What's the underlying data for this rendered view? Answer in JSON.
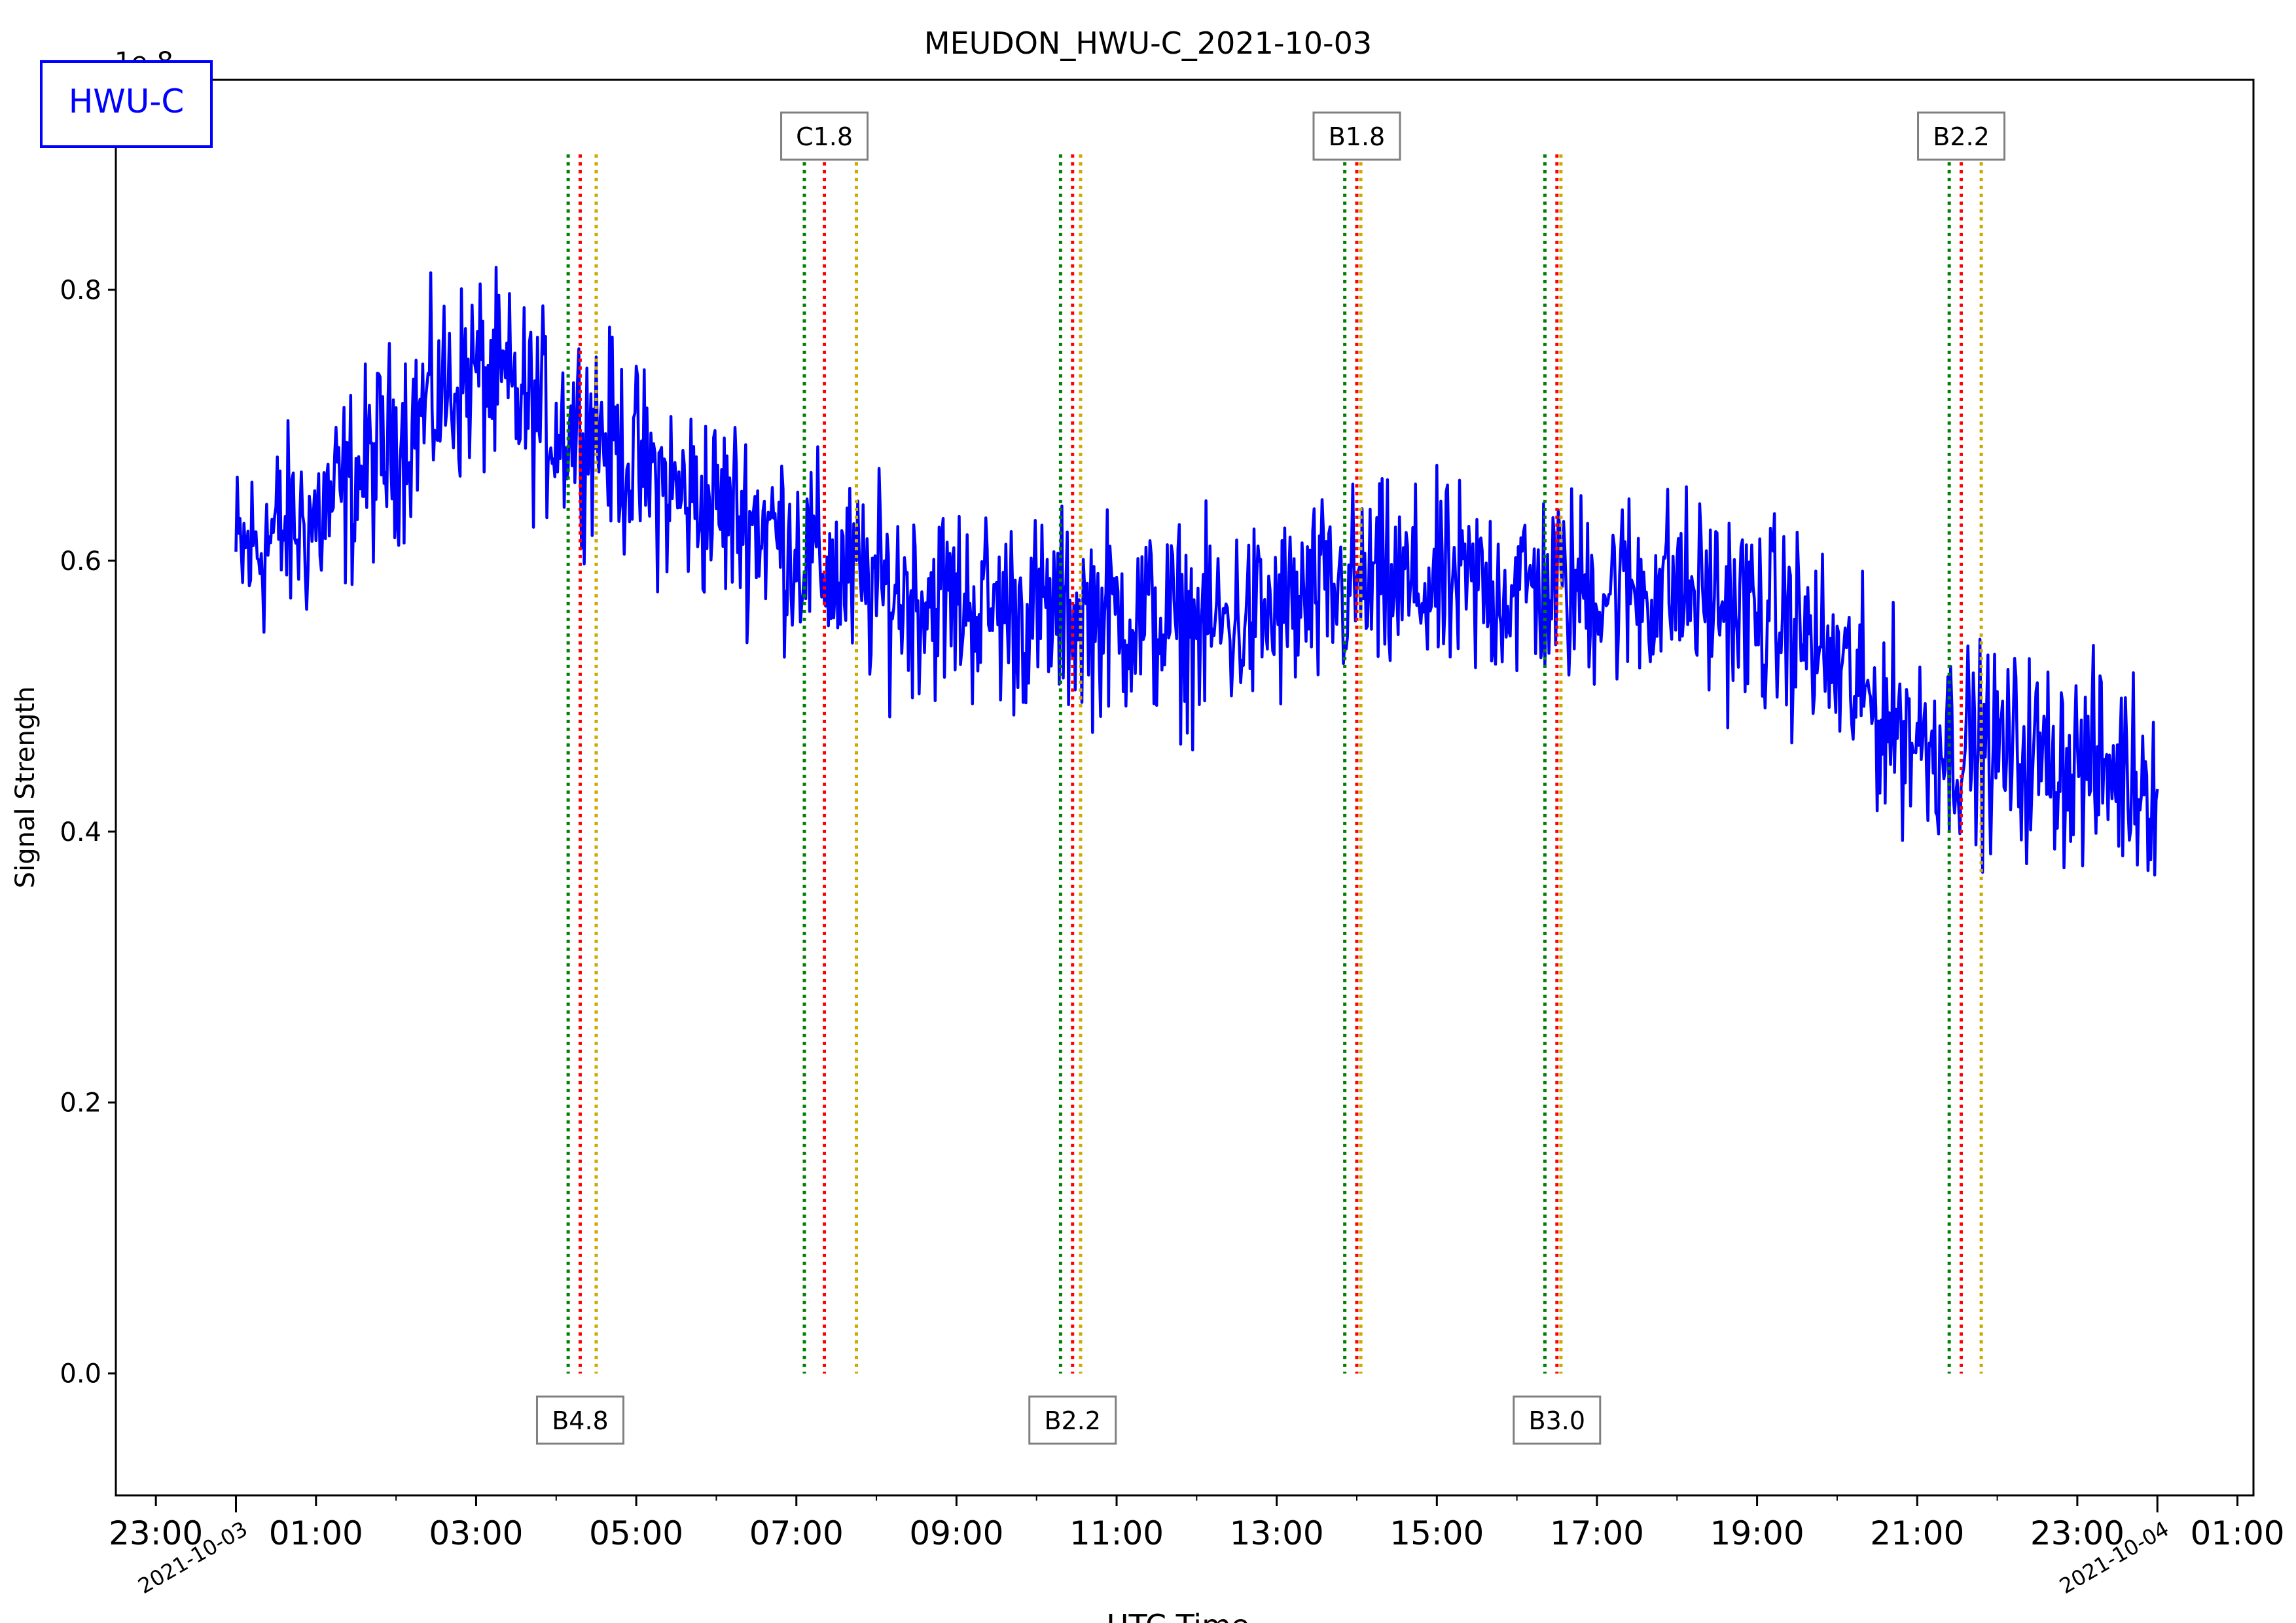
{
  "chart_data": {
    "type": "line",
    "title": "MEUDON_HWU-C_2021-10-03",
    "xlabel": "UTC Time",
    "ylabel": "Signal Strength",
    "y_offset_label": "1e-8",
    "station_label": "HWU-C",
    "xlim": [
      -1.5,
      25.2
    ],
    "ylim": [
      -0.09,
      0.955
    ],
    "yticks": [
      0.0,
      0.2,
      0.4,
      0.6,
      0.8
    ],
    "ytick_labels": [
      "0.0",
      "0.2",
      "0.4",
      "0.6",
      "0.8"
    ],
    "xticks": [
      -1,
      1,
      3,
      5,
      7,
      9,
      11,
      13,
      15,
      17,
      19,
      21,
      23,
      25
    ],
    "xtick_labels": [
      "23:00",
      "01:00",
      "03:00",
      "05:00",
      "07:00",
      "09:00",
      "11:00",
      "13:00",
      "15:00",
      "17:00",
      "19:00",
      "21:00",
      "23:00",
      "01:00"
    ],
    "date_labels": [
      {
        "x": 0,
        "label": "2021-10-03"
      },
      {
        "x": 24,
        "label": "2021-10-04"
      }
    ],
    "grid": false,
    "series": [
      {
        "name": "HWU-C",
        "color": "#0000ff",
        "x_start": 0.0,
        "x_end": 24.0,
        "baseline_points": [
          [
            0,
            0.6
          ],
          [
            0.5,
            0.62
          ],
          [
            1,
            0.63
          ],
          [
            1.5,
            0.66
          ],
          [
            2,
            0.69
          ],
          [
            2.5,
            0.72
          ],
          [
            3,
            0.74
          ],
          [
            3.5,
            0.72
          ],
          [
            4,
            0.7
          ],
          [
            4.5,
            0.7
          ],
          [
            5,
            0.67
          ],
          [
            5.5,
            0.65
          ],
          [
            6,
            0.64
          ],
          [
            6.5,
            0.63
          ],
          [
            7,
            0.61
          ],
          [
            7.5,
            0.59
          ],
          [
            8,
            0.58
          ],
          [
            9,
            0.57
          ],
          [
            10,
            0.56
          ],
          [
            11,
            0.56
          ],
          [
            12,
            0.55
          ],
          [
            13,
            0.56
          ],
          [
            14,
            0.58
          ],
          [
            15,
            0.58
          ],
          [
            16,
            0.58
          ],
          [
            17,
            0.58
          ],
          [
            18,
            0.58
          ],
          [
            19,
            0.56
          ],
          [
            19.5,
            0.55
          ],
          [
            20,
            0.52
          ],
          [
            20.5,
            0.49
          ],
          [
            21,
            0.47
          ],
          [
            22,
            0.46
          ],
          [
            23,
            0.45
          ],
          [
            24,
            0.44
          ]
        ],
        "noise": 0.045
      }
    ],
    "flares": [
      {
        "class": "B4.8",
        "start": 4.15,
        "peak": 4.3,
        "end": 4.5,
        "label_pos": "bottom"
      },
      {
        "class": "C1.8",
        "start": 7.1,
        "peak": 7.35,
        "end": 7.75,
        "label_pos": "top"
      },
      {
        "class": "B2.2",
        "start": 10.3,
        "peak": 10.45,
        "end": 10.55,
        "label_pos": "bottom"
      },
      {
        "class": "B1.8",
        "start": 13.85,
        "peak": 14.0,
        "end": 14.05,
        "label_pos": "top"
      },
      {
        "class": "B3.0",
        "start": 16.35,
        "peak": 16.5,
        "end": 16.55,
        "label_pos": "bottom"
      },
      {
        "class": "B2.2",
        "start": 21.4,
        "peak": 21.55,
        "end": 21.8,
        "label_pos": "top"
      }
    ],
    "flare_line_colors": {
      "start": "#008000",
      "peak": "#ff0000",
      "end": "#ccaa00"
    }
  }
}
